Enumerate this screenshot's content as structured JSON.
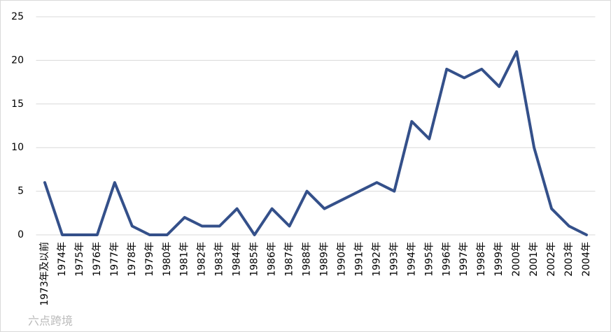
{
  "chart_data": {
    "type": "line",
    "categories": [
      "1973年及以前",
      "1974年",
      "1975年",
      "1976年",
      "1977年",
      "1978年",
      "1979年",
      "1980年",
      "1981年",
      "1982年",
      "1983年",
      "1984年",
      "1985年",
      "1986年",
      "1987年",
      "1988年",
      "1989年",
      "1990年",
      "1991年",
      "1992年",
      "1993年",
      "1994年",
      "1995年",
      "1996年",
      "1997年",
      "1998年",
      "1999年",
      "2000年",
      "2001年",
      "2002年",
      "2003年",
      "2004年"
    ],
    "values": [
      6,
      0,
      0,
      0,
      6,
      1,
      0,
      0,
      2,
      1,
      1,
      3,
      0,
      3,
      1,
      5,
      3,
      4,
      5,
      6,
      5,
      13,
      11,
      19,
      18,
      19,
      17,
      21,
      10,
      3,
      1,
      0
    ],
    "color": "#34508a",
    "ylim": [
      0,
      25
    ],
    "yticks": [
      0,
      5,
      10,
      15,
      20,
      25
    ],
    "grid": true
  },
  "watermark": "六点跨境"
}
